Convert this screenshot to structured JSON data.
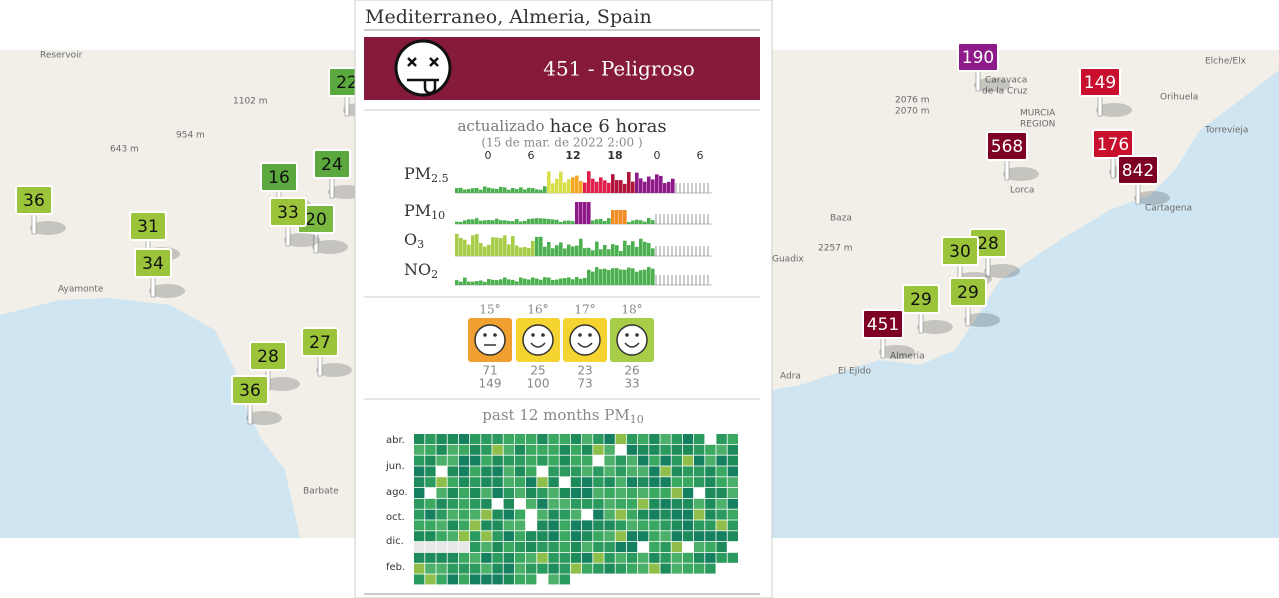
{
  "map": {
    "labels": [
      "Reservoir",
      "1102 m",
      "954 m",
      "643 m",
      "Ayamonte",
      "Barbate",
      "Baza",
      "2257 m",
      "Guadix",
      "Lorca",
      "Cartagena",
      "Torrevieja",
      "Orihuela",
      "Elche/Elx",
      "Caravaca",
      "de la Cruz",
      "MURCIA",
      "REGION",
      "Almeria",
      "Adra",
      "El Ejido",
      "2076 m",
      "2070 m"
    ],
    "markers": [
      {
        "value": 22,
        "color": "#5aa83e"
      },
      {
        "value": 24,
        "color": "#5aa83e"
      },
      {
        "value": 16,
        "color": "#5aa83e"
      },
      {
        "value": 20,
        "color": "#7ab840"
      },
      {
        "value": 33,
        "color": "#9cc43a"
      },
      {
        "value": 36,
        "color": "#9cc43a"
      },
      {
        "value": 31,
        "color": "#9cc43a"
      },
      {
        "value": 34,
        "color": "#9cc43a"
      },
      {
        "value": 28,
        "color": "#9cc43a"
      },
      {
        "value": 27,
        "color": "#9cc43a"
      },
      {
        "value": 36,
        "color": "#9cc43a"
      },
      {
        "value": 190,
        "color": "#8e1a8a"
      },
      {
        "value": 149,
        "color": "#c8102e"
      },
      {
        "value": 568,
        "color": "#7e0023"
      },
      {
        "value": 176,
        "color": "#c8102e"
      },
      {
        "value": 842,
        "color": "#7e0023"
      },
      {
        "value": 28,
        "color": "#9cc43a"
      },
      {
        "value": 30,
        "color": "#9cc43a"
      },
      {
        "value": 29,
        "color": "#9cc43a"
      },
      {
        "value": 29,
        "color": "#9cc43a"
      },
      {
        "value": 451,
        "color": "#7e0023"
      }
    ]
  },
  "popup": {
    "title": "Mediterraneo, Almeria, Spain",
    "aqi_text": "451 - Peligroso",
    "aqi_color": "#861a3a",
    "updated_prefix": "actualizado",
    "updated_ago": "hace 6 horas",
    "timestamp": "(15 de mar. de 2022 2:00 )",
    "hours": [
      0,
      6,
      12,
      18,
      0,
      6
    ],
    "pollutants": [
      {
        "name": "PM",
        "sub": "2.5"
      },
      {
        "name": "PM",
        "sub": "10"
      },
      {
        "name": "O",
        "sub": "3"
      },
      {
        "name": "NO",
        "sub": "2"
      }
    ],
    "forecast": [
      {
        "temp": "15°",
        "color": "#f0a030",
        "values": [
          71,
          149
        ]
      },
      {
        "temp": "16°",
        "color": "#f5d432",
        "values": [
          25,
          100
        ]
      },
      {
        "temp": "17°",
        "color": "#f5d432",
        "values": [
          23,
          73
        ]
      },
      {
        "temp": "18°",
        "color": "#a6cc48",
        "values": [
          26,
          33
        ]
      }
    ],
    "history_title": {
      "main": "past 12 months PM",
      "sub": "10"
    },
    "months": [
      "abr.",
      "jun.",
      "ago.",
      "oct.",
      "dic.",
      "feb."
    ]
  }
}
